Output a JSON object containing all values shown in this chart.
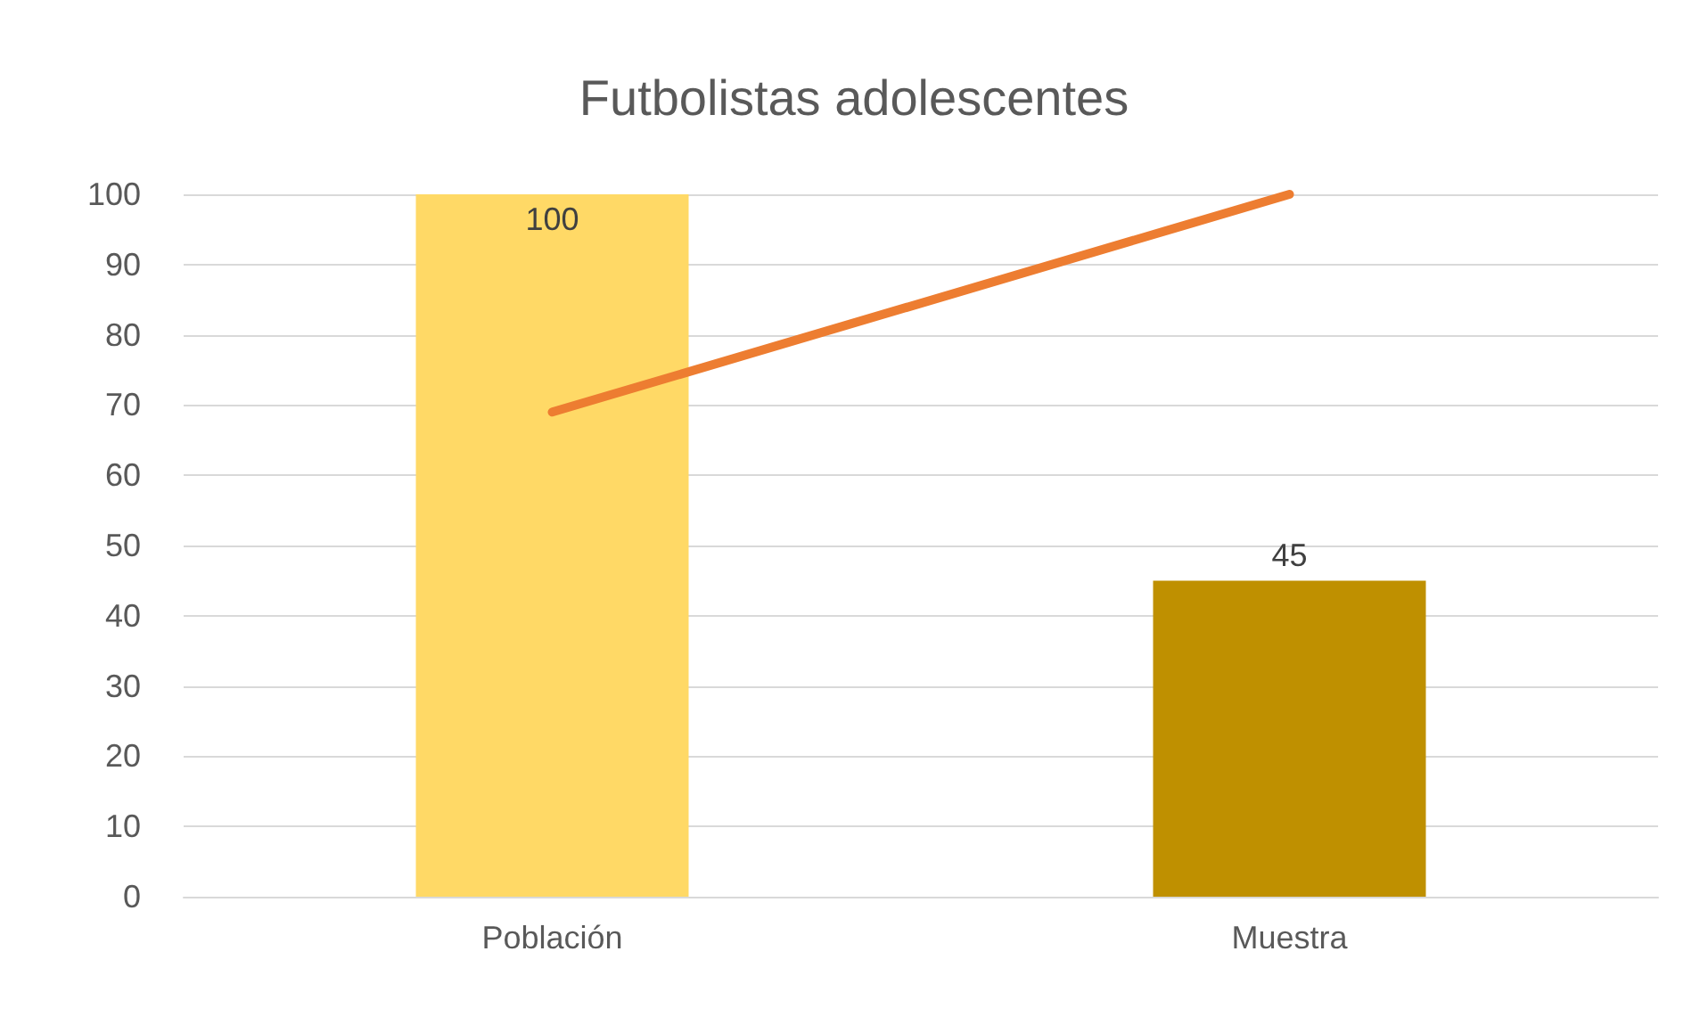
{
  "chart_data": {
    "type": "bar",
    "title": "Futbolistas adolescentes",
    "categories": [
      "Población",
      "Muestra"
    ],
    "series": [
      {
        "colors": [
          "#ffd966",
          "#bf9000"
        ],
        "values": [
          100,
          45
        ],
        "value_labels": [
          "100",
          "45"
        ]
      },
      {
        "type": "line",
        "color": "#ed7d31",
        "values": [
          69,
          100
        ]
      }
    ],
    "ylim": [
      0,
      100
    ],
    "yticks": [
      0,
      10,
      20,
      30,
      40,
      50,
      60,
      70,
      80,
      90,
      100
    ],
    "grid": "y",
    "marker": "none"
  }
}
